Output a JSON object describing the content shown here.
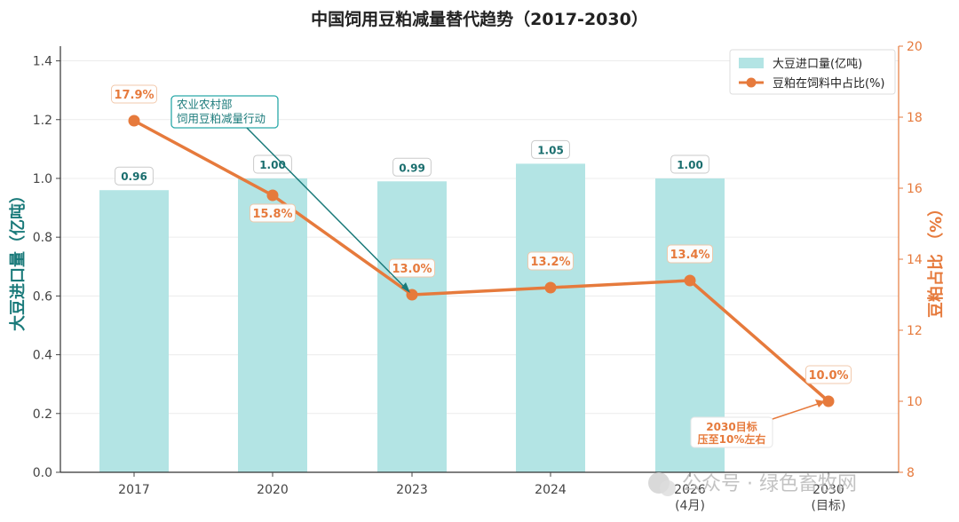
{
  "chart_data": {
    "type": "bar+line",
    "title": "中国饲用豆粕减量替代趋势（2017-2030）",
    "categories": [
      "2017",
      "2020",
      "2023",
      "2024",
      "2026",
      "2030"
    ],
    "category_sublabels": [
      "",
      "",
      "",
      "",
      "(4月)",
      "(目标)"
    ],
    "bar_series": {
      "name": "大豆进口量(亿吨)",
      "values": [
        0.96,
        1.0,
        0.99,
        1.05,
        1.0,
        null
      ],
      "labels": [
        "0.96",
        "1.00",
        "0.99",
        "1.05",
        "1.00",
        ""
      ],
      "color": "#b3e4e4"
    },
    "line_series": {
      "name": "豆粕在饲料中占比(%)",
      "values": [
        17.9,
        15.8,
        13.0,
        13.2,
        13.4,
        10.0
      ],
      "labels": [
        "17.9%",
        "15.8%",
        "13.0%",
        "13.2%",
        "13.4%",
        "10.0%"
      ],
      "color": "#e67a3c"
    },
    "y_left": {
      "label": "大豆进口量（亿吨）",
      "min": 0,
      "max": 1.45,
      "ticks": [
        "0.0",
        "0.2",
        "0.4",
        "0.6",
        "0.8",
        "1.0",
        "1.2",
        "1.4"
      ],
      "color": "#1a7a7a"
    },
    "y_right": {
      "label": "豆粕占比 （%）",
      "min": 8,
      "max": 20,
      "ticks": [
        "8",
        "10",
        "12",
        "14",
        "16",
        "18",
        "20"
      ],
      "color": "#e67a3c"
    },
    "legend_position": "top-right",
    "grid": true,
    "annotations": [
      {
        "text_lines": [
          "农业农村部",
          "饲用豆粕减量行动"
        ],
        "target_category": "2023",
        "target_value": 13.0
      },
      {
        "text_lines": [
          "2030目标",
          "压至10%左右"
        ],
        "target_category": "2030",
        "target_value": 10.0
      }
    ]
  },
  "watermark": "公众号 · 绿色畜牧网"
}
